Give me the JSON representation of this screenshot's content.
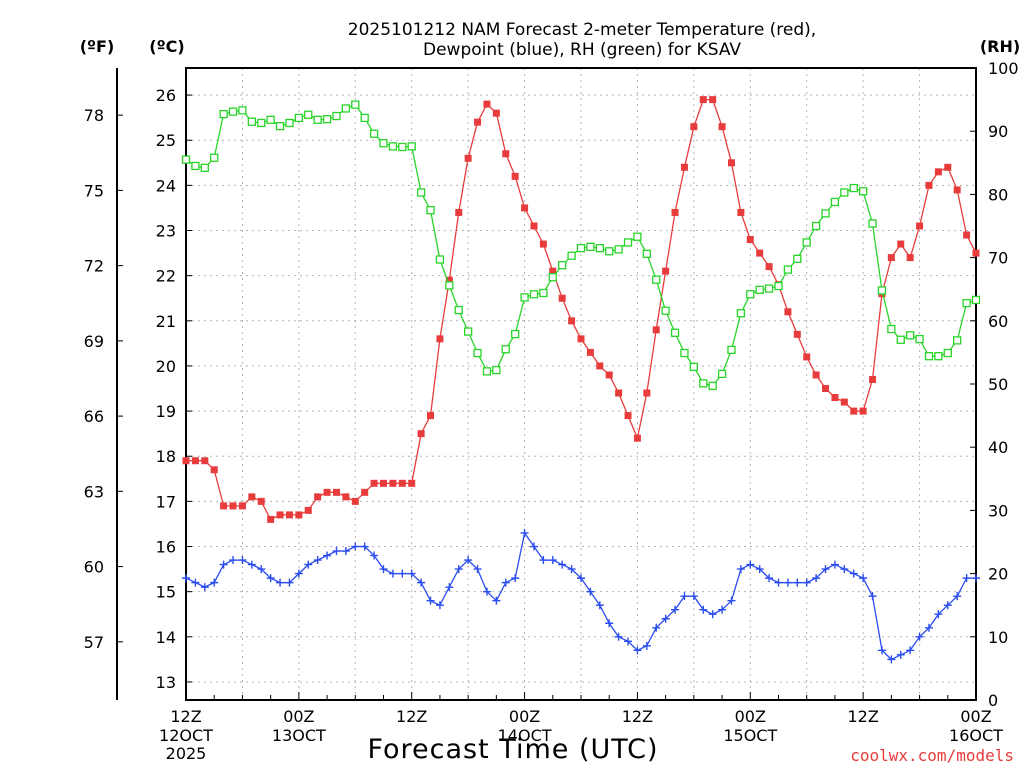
{
  "chart_data": {
    "type": "line",
    "title": "2025101212 NAM Forecast 2-meter Temperature (red),",
    "subtitle": "Dewpoint (blue), RH (green) for KSAV",
    "xlabel": "Forecast Time (UTC)",
    "watermark": "coolwx.com/models",
    "axis_units": {
      "fahrenheit": "(ºF)",
      "celsius": "(ºC)",
      "rh": "(RH)"
    },
    "x_ticks": [
      {
        "hour": 0,
        "line1": "12Z",
        "line2": "12OCT",
        "line3": "2025"
      },
      {
        "hour": 12,
        "line1": "00Z",
        "line2": "13OCT",
        "line3": ""
      },
      {
        "hour": 24,
        "line1": "12Z",
        "line2": "",
        "line3": ""
      },
      {
        "hour": 36,
        "line1": "00Z",
        "line2": "14OCT",
        "line3": ""
      },
      {
        "hour": 48,
        "line1": "12Z",
        "line2": "",
        "line3": ""
      },
      {
        "hour": 60,
        "line1": "00Z",
        "line2": "15OCT",
        "line3": ""
      },
      {
        "hour": 72,
        "line1": "12Z",
        "line2": "",
        "line3": ""
      },
      {
        "hour": 84,
        "line1": "00Z",
        "line2": "16OCT",
        "line3": ""
      }
    ],
    "x_range": [
      0,
      84
    ],
    "celsius_ticks": [
      "13",
      "14",
      "15",
      "16",
      "17",
      "18",
      "19",
      "20",
      "21",
      "22",
      "23",
      "24",
      "25",
      "26"
    ],
    "celsius_range": [
      12.6,
      26.6
    ],
    "fahrenheit_ticks": [
      "57",
      "60",
      "63",
      "66",
      "69",
      "72",
      "75",
      "78"
    ],
    "rh_ticks": [
      "0",
      "10",
      "20",
      "30",
      "40",
      "50",
      "60",
      "70",
      "80",
      "90",
      "100"
    ],
    "rh_range": [
      0,
      100
    ],
    "grid": true,
    "series": [
      {
        "name": "Temperature (red)",
        "color": "#e83c3c",
        "marker": "filled-square",
        "units": "C",
        "values": [
          17.9,
          17.9,
          17.9,
          17.7,
          16.9,
          16.9,
          16.9,
          17.1,
          17.0,
          16.6,
          16.7,
          16.7,
          16.7,
          16.8,
          17.1,
          17.2,
          17.2,
          17.1,
          17.0,
          17.2,
          17.4,
          17.4,
          17.4,
          17.4,
          17.4,
          18.5,
          18.9,
          20.6,
          21.9,
          23.4,
          24.6,
          25.4,
          25.8,
          25.6,
          24.7,
          24.2,
          23.5,
          23.1,
          22.7,
          22.1,
          21.5,
          21.0,
          20.6,
          20.3,
          20.0,
          19.8,
          19.4,
          18.9,
          18.4,
          19.4,
          20.8,
          22.1,
          23.4,
          24.4,
          25.3,
          25.9,
          25.9,
          25.3,
          24.5,
          23.4,
          22.8,
          22.5,
          22.2,
          21.8,
          21.2,
          20.7,
          20.2,
          19.8,
          19.5,
          19.3,
          19.2,
          19.0,
          19.0,
          19.7,
          21.6,
          22.4,
          22.7,
          22.4,
          23.1,
          24.0,
          24.3,
          24.4,
          23.9,
          22.9,
          22.5
        ]
      },
      {
        "name": "Dewpoint (blue)",
        "color": "#2b4df0",
        "marker": "plus",
        "units": "C",
        "values": [
          15.3,
          15.2,
          15.1,
          15.2,
          15.6,
          15.7,
          15.7,
          15.6,
          15.5,
          15.3,
          15.2,
          15.2,
          15.4,
          15.6,
          15.7,
          15.8,
          15.9,
          15.9,
          16.0,
          16.0,
          15.8,
          15.5,
          15.4,
          15.4,
          15.4,
          15.2,
          14.8,
          14.7,
          15.1,
          15.5,
          15.7,
          15.5,
          15.0,
          14.8,
          15.2,
          15.3,
          16.3,
          16.0,
          15.7,
          15.7,
          15.6,
          15.5,
          15.3,
          15.0,
          14.7,
          14.3,
          14.0,
          13.9,
          13.7,
          13.8,
          14.2,
          14.4,
          14.6,
          14.9,
          14.9,
          14.6,
          14.5,
          14.6,
          14.8,
          15.5,
          15.6,
          15.5,
          15.3,
          15.2,
          15.2,
          15.2,
          15.2,
          15.3,
          15.5,
          15.6,
          15.5,
          15.4,
          15.3,
          14.9,
          13.7,
          13.5,
          13.6,
          13.7,
          14.0,
          14.2,
          14.5,
          14.7,
          14.9,
          15.3,
          15.3
        ]
      },
      {
        "name": "RH (green)",
        "color": "#29d429",
        "marker": "open-square",
        "units": "%",
        "values": [
          85.5,
          84.5,
          84.2,
          85.8,
          92.7,
          93.1,
          93.3,
          91.5,
          91.3,
          91.8,
          90.8,
          91.3,
          92.1,
          92.6,
          91.8,
          91.9,
          92.4,
          93.6,
          94.2,
          92.1,
          89.6,
          88.1,
          87.6,
          87.5,
          87.6,
          80.3,
          77.5,
          69.7,
          65.6,
          61.7,
          58.3,
          54.9,
          52.0,
          52.2,
          55.5,
          57.9,
          63.7,
          64.2,
          64.4,
          66.9,
          68.8,
          70.3,
          71.5,
          71.7,
          71.5,
          71.0,
          71.3,
          72.4,
          73.3,
          70.6,
          66.5,
          61.6,
          58.1,
          54.9,
          52.7,
          50.1,
          49.7,
          51.6,
          55.4,
          61.2,
          64.2,
          64.9,
          65.1,
          65.5,
          68.1,
          69.8,
          72.4,
          75.0,
          77.0,
          78.8,
          80.3,
          81.0,
          80.5,
          75.4,
          64.8,
          58.7,
          57.0,
          57.7,
          57.1,
          54.4,
          54.4,
          54.9,
          56.9,
          62.8,
          63.3
        ]
      }
    ]
  }
}
